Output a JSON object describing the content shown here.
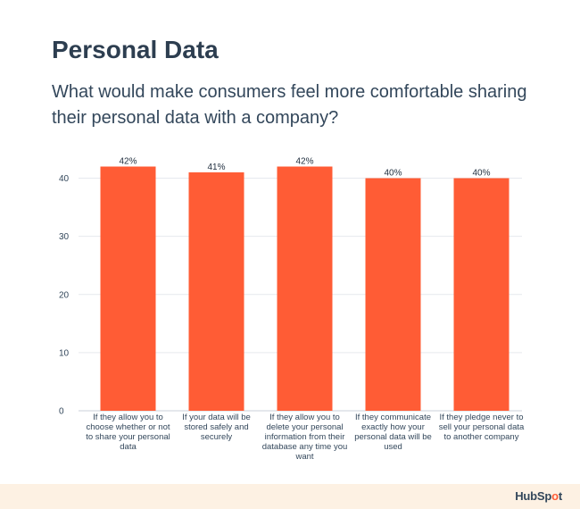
{
  "title": "Personal Data",
  "subtitle": "What would make consumers feel more comfortable sharing their personal data with a company?",
  "brand": {
    "logo_text_a": "HubSp",
    "logo_text_b": "o",
    "logo_text_c": "t",
    "accent_color": "#ff5c35"
  },
  "chart_data": {
    "type": "bar",
    "categories": [
      "If they allow you to choose whether or not to share your personal data",
      "If your data will be stored safely and securely",
      "If they allow you to delete your personal information from their database any time you want",
      "If they communicate exactly how your personal data will be used",
      "If they pledge never to sell your personal data to another company"
    ],
    "category_lines": [
      [
        "If they allow you to",
        "choose whether or not",
        "to share your personal",
        "data"
      ],
      [
        "If your data will be",
        "stored safely and",
        "securely"
      ],
      [
        "If they allow you to",
        "delete your personal",
        "information from their",
        "database any time you",
        "want"
      ],
      [
        "If they communicate",
        "exactly how your",
        "personal data will be",
        "used"
      ],
      [
        "If they pledge never to",
        "sell your personal data",
        "to another company"
      ]
    ],
    "values": [
      42,
      41,
      42,
      40,
      40
    ],
    "data_labels": [
      "42%",
      "41%",
      "42%",
      "40%",
      "40%"
    ],
    "yticks": [
      0,
      10,
      20,
      30,
      40
    ],
    "ylim": [
      0,
      43
    ],
    "bar_color": "#ff5c35",
    "grid": true,
    "xlabel": "",
    "ylabel": ""
  }
}
